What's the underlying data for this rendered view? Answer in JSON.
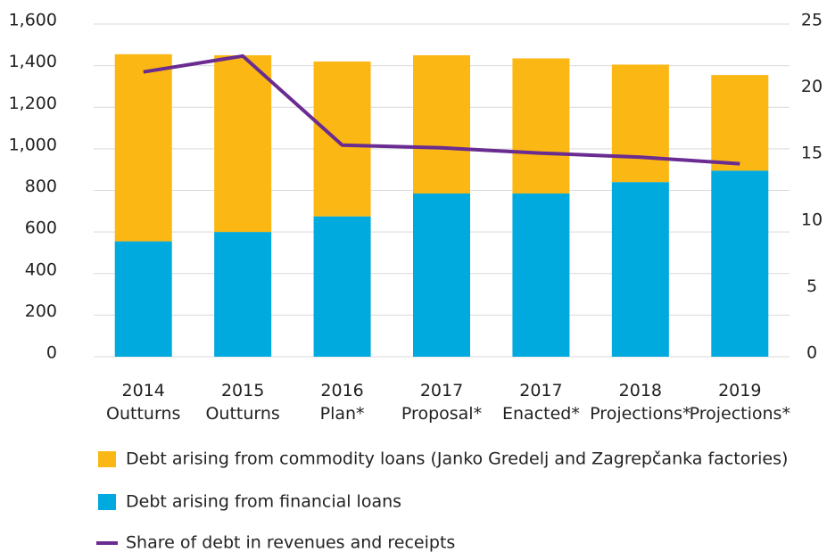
{
  "chart_data": {
    "type": "bar_line",
    "categories": [
      "2014 Outturns",
      "2015 Outturns",
      "2016 Plan*",
      "2017 Proposal*",
      "2017 Enacted*",
      "2018 Projections*",
      "2019 Projections*"
    ],
    "series": [
      {
        "name": "Debt arising from commodity loans (Janko Gredelj and Zagrepčanka factories)",
        "color": "#fbb713",
        "type": "bar",
        "values": [
          900,
          850,
          745,
          665,
          650,
          565,
          460
        ]
      },
      {
        "name": "Debt arising from financial loans",
        "color": "#00a9de",
        "type": "bar",
        "values": [
          555,
          600,
          675,
          785,
          785,
          840,
          895
        ]
      },
      {
        "name": "Share of debt in revenues and receipts",
        "color": "#6a2c91",
        "type": "line",
        "axis": "y2",
        "values": [
          21.4,
          22.6,
          15.9,
          15.7,
          15.3,
          15.0,
          14.5
        ]
      }
    ],
    "ylim": [
      0,
      1600
    ],
    "yticks": [
      0,
      200,
      400,
      600,
      800,
      {
        "value": 1000,
        "label": "1,000"
      },
      {
        "value": 1200,
        "label": "1,200"
      },
      {
        "value": 1400,
        "label": "1,400"
      },
      {
        "value": 1600,
        "label": "1,600"
      }
    ],
    "y2lim": [
      0,
      25
    ],
    "y2ticks": [
      0,
      5,
      10,
      15,
      20,
      25
    ],
    "stacked": true,
    "grid": true
  }
}
